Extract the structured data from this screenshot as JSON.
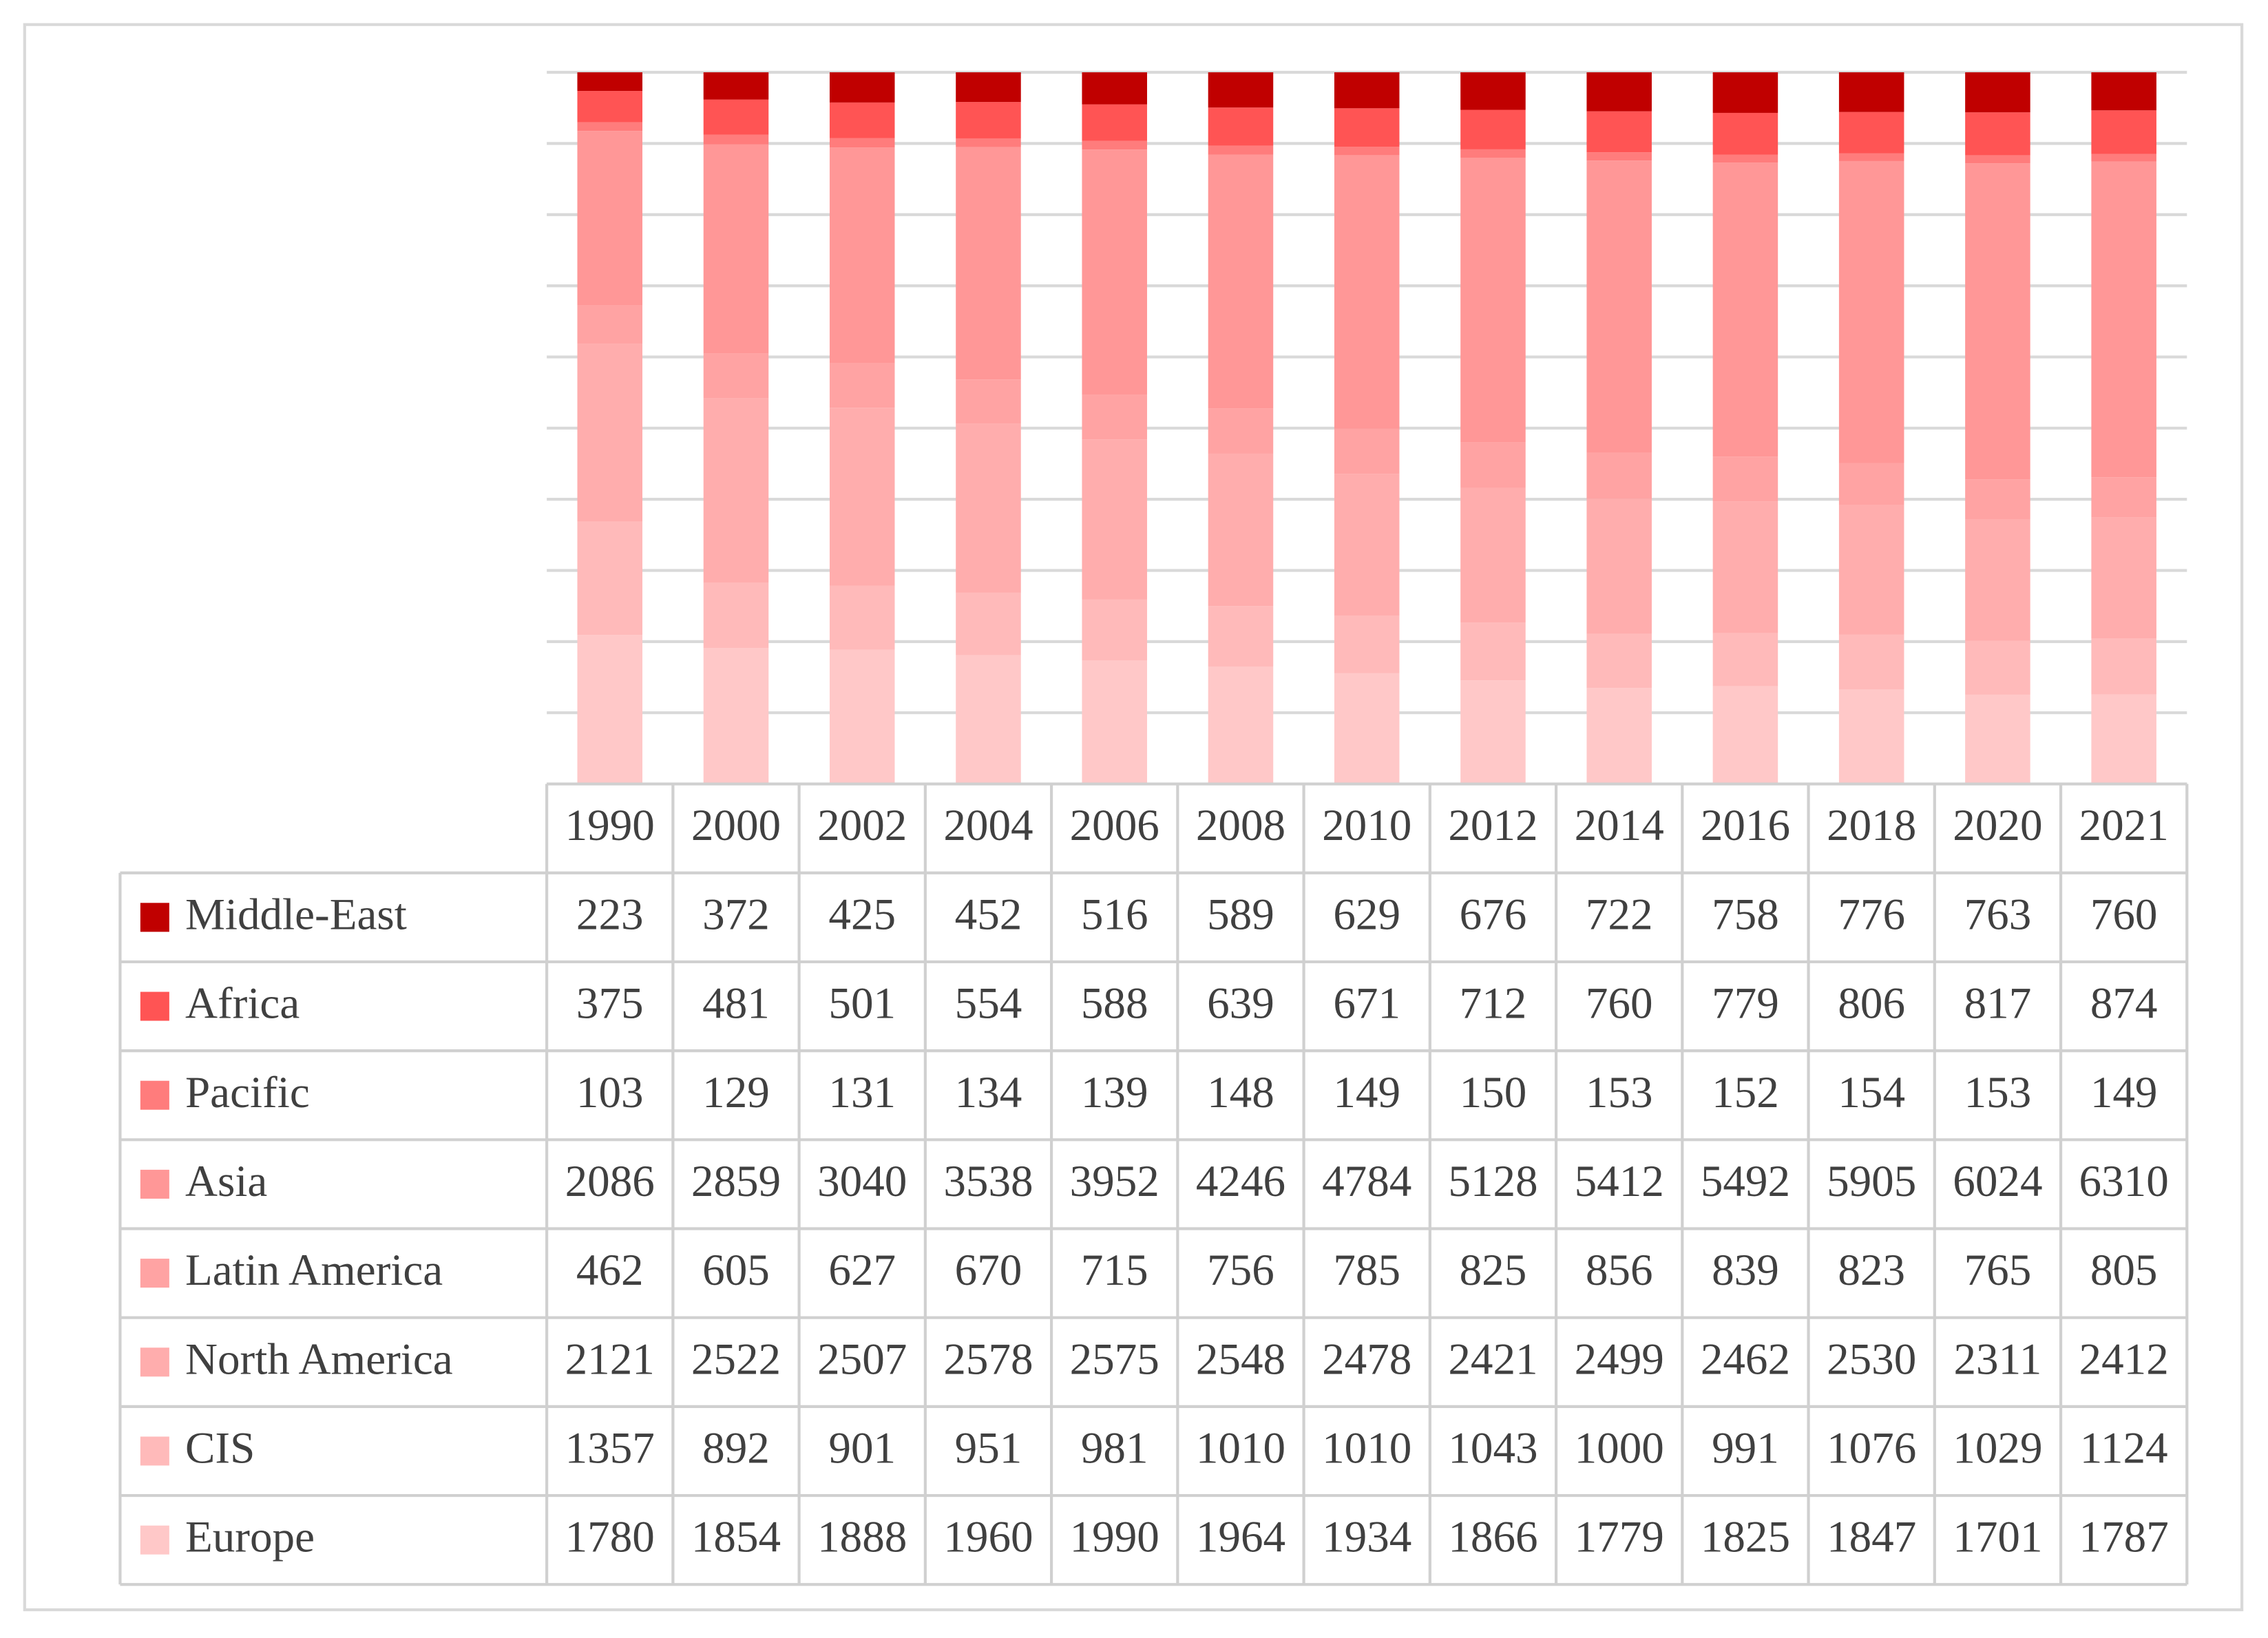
{
  "chart_data": {
    "type": "stacked_bar_percent",
    "categories": [
      "1990",
      "2000",
      "2002",
      "2004",
      "2006",
      "2008",
      "2010",
      "2012",
      "2014",
      "2016",
      "2018",
      "2020",
      "2021"
    ],
    "series": [
      {
        "name": "Middle-East",
        "color": "#c00000",
        "values": [
          223,
          372,
          425,
          452,
          516,
          589,
          629,
          676,
          722,
          758,
          776,
          763,
          760
        ]
      },
      {
        "name": "Africa",
        "color": "#ff5454",
        "values": [
          375,
          481,
          501,
          554,
          588,
          639,
          671,
          712,
          760,
          779,
          806,
          817,
          874
        ]
      },
      {
        "name": "Pacific",
        "color": "#ff7c7c",
        "values": [
          103,
          129,
          131,
          134,
          139,
          148,
          149,
          150,
          153,
          152,
          154,
          153,
          149
        ]
      },
      {
        "name": "Asia",
        "color": "#ff9797",
        "values": [
          2086,
          2859,
          3040,
          3538,
          3952,
          4246,
          4784,
          5128,
          5412,
          5492,
          5905,
          6024,
          6310
        ]
      },
      {
        "name": "Latin America",
        "color": "#ffa3a3",
        "values": [
          462,
          605,
          627,
          670,
          715,
          756,
          785,
          825,
          856,
          839,
          823,
          765,
          805
        ]
      },
      {
        "name": "North America",
        "color": "#ffadad",
        "values": [
          2121,
          2522,
          2507,
          2578,
          2575,
          2548,
          2478,
          2421,
          2499,
          2462,
          2530,
          2311,
          2412
        ]
      },
      {
        "name": "CIS",
        "color": "#ffbaba",
        "values": [
          1357,
          892,
          901,
          951,
          981,
          1010,
          1010,
          1043,
          1000,
          991,
          1076,
          1029,
          1124
        ]
      },
      {
        "name": "Europe",
        "color": "#ffc8c8",
        "values": [
          1780,
          1854,
          1888,
          1960,
          1990,
          1964,
          1934,
          1866,
          1779,
          1825,
          1847,
          1701,
          1787
        ]
      }
    ],
    "ylim": [
      0,
      100
    ],
    "yticks": [
      0,
      10,
      20,
      30,
      40,
      50,
      60,
      70,
      80,
      90,
      100
    ],
    "grid": true
  }
}
